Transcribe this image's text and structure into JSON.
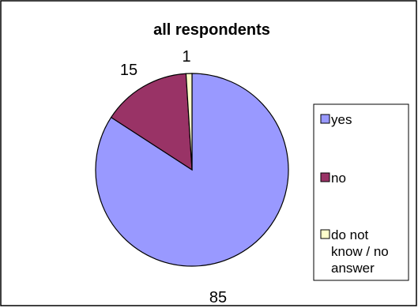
{
  "chart_data": {
    "type": "pie",
    "title": "all respondents",
    "categories": [
      "yes",
      "no",
      "do not know / no answer"
    ],
    "values": [
      85,
      15,
      1
    ],
    "colors": [
      "#9999ff",
      "#993366",
      "#ffffcc"
    ],
    "data_labels": [
      "85",
      "15",
      "1"
    ],
    "legend": {
      "position": "right",
      "entries": [
        {
          "lines": [
            "yes"
          ]
        },
        {
          "lines": [
            "no"
          ]
        },
        {
          "lines": [
            "do not",
            "know / no",
            "answer"
          ]
        }
      ]
    }
  }
}
